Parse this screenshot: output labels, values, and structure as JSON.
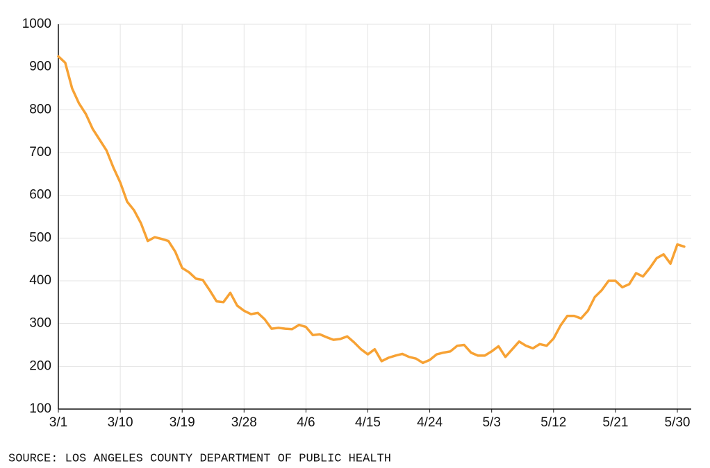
{
  "chart_data": {
    "type": "line",
    "source": "SOURCE: LOS ANGELES COUNTY DEPARTMENT OF PUBLIC HEALTH",
    "categories": [
      "3/1",
      null,
      null,
      null,
      null,
      null,
      null,
      null,
      null,
      "3/10",
      null,
      null,
      null,
      null,
      null,
      null,
      null,
      null,
      "3/19",
      null,
      null,
      null,
      null,
      null,
      null,
      null,
      null,
      "3/28",
      null,
      null,
      null,
      null,
      null,
      null,
      null,
      null,
      "4/6",
      null,
      null,
      null,
      null,
      null,
      null,
      null,
      null,
      "4/15",
      null,
      null,
      null,
      null,
      null,
      null,
      null,
      null,
      "4/24",
      null,
      null,
      null,
      null,
      null,
      null,
      null,
      null,
      "5/3",
      null,
      null,
      null,
      null,
      null,
      null,
      null,
      null,
      "5/12",
      null,
      null,
      null,
      null,
      null,
      null,
      null,
      null,
      "5/21",
      null,
      null,
      null,
      null,
      null,
      null,
      null,
      null,
      "5/30",
      null
    ],
    "values": [
      925,
      910,
      850,
      815,
      790,
      755,
      730,
      705,
      665,
      630,
      585,
      565,
      535,
      493,
      502,
      498,
      493,
      468,
      430,
      420,
      405,
      402,
      378,
      352,
      350,
      372,
      342,
      330,
      322,
      325,
      310,
      288,
      290,
      288,
      287,
      297,
      292,
      273,
      275,
      268,
      262,
      264,
      270,
      256,
      240,
      228,
      240,
      212,
      220,
      225,
      229,
      222,
      218,
      208,
      215,
      228,
      232,
      235,
      248,
      250,
      232,
      225,
      225,
      235,
      247,
      222,
      240,
      258,
      248,
      242,
      252,
      248,
      265,
      295,
      318,
      318,
      312,
      330,
      362,
      378,
      400,
      400,
      385,
      392,
      418,
      410,
      430,
      453,
      462,
      440,
      485,
      480
    ],
    "color": "#f7a234",
    "ylim": [
      100,
      1000
    ],
    "yticks": [
      100,
      200,
      300,
      400,
      500,
      600,
      700,
      800,
      900,
      1000
    ],
    "grid": true
  }
}
